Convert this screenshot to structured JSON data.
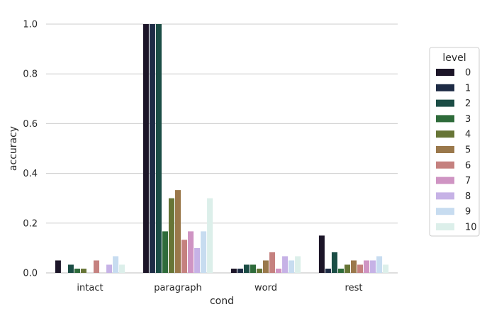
{
  "chart_data": {
    "type": "bar",
    "xlabel": "cond",
    "ylabel": "accuracy",
    "ylim": [
      0,
      1.0
    ],
    "yticks": [
      "0.0",
      "0.2",
      "0.4",
      "0.6",
      "0.8",
      "1.0"
    ],
    "grid": "horizontal",
    "legend_title": "level",
    "legend_position": "right",
    "categories": [
      "intact",
      "paragraph",
      "word",
      "rest"
    ],
    "series": [
      {
        "name": "0",
        "color": "#1c1528",
        "values": [
          0.05,
          1.0,
          0.017,
          0.15
        ]
      },
      {
        "name": "1",
        "color": "#1d2b45",
        "values": [
          0.0,
          1.0,
          0.017,
          0.017
        ]
      },
      {
        "name": "2",
        "color": "#1b4d45",
        "values": [
          0.033,
          1.0,
          0.033,
          0.083
        ]
      },
      {
        "name": "3",
        "color": "#2e6b3a",
        "values": [
          0.017,
          0.167,
          0.033,
          0.017
        ]
      },
      {
        "name": "4",
        "color": "#677536",
        "values": [
          0.017,
          0.3,
          0.017,
          0.033
        ]
      },
      {
        "name": "5",
        "color": "#9a784b",
        "values": [
          0.0,
          0.333,
          0.05,
          0.05
        ]
      },
      {
        "name": "6",
        "color": "#c5817f",
        "values": [
          0.05,
          0.133,
          0.083,
          0.033
        ]
      },
      {
        "name": "7",
        "color": "#cf94c3",
        "values": [
          0.0,
          0.167,
          0.017,
          0.05
        ]
      },
      {
        "name": "8",
        "color": "#c6b2e6",
        "values": [
          0.033,
          0.1,
          0.067,
          0.05
        ]
      },
      {
        "name": "9",
        "color": "#c7dcf0",
        "values": [
          0.067,
          0.167,
          0.05,
          0.067
        ]
      },
      {
        "name": "10",
        "color": "#dcefea",
        "values": [
          0.033,
          0.3,
          0.067,
          0.033
        ]
      }
    ]
  }
}
